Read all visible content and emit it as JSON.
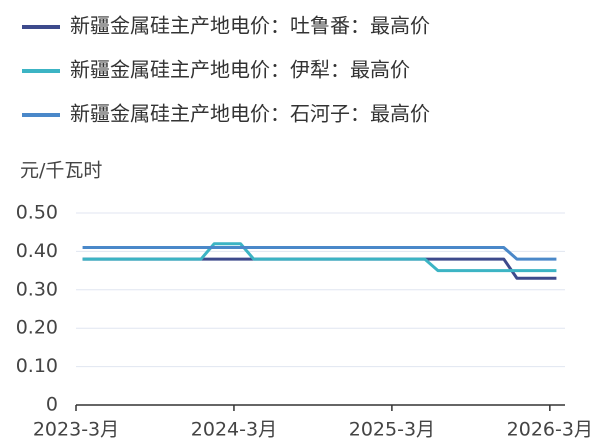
{
  "chart_data": {
    "type": "line",
    "y_label": "元/千瓦时",
    "categories": [
      "2023-3月",
      null,
      null,
      null,
      null,
      null,
      null,
      null,
      null,
      null,
      null,
      null,
      "2024-3月",
      null,
      null,
      null,
      null,
      null,
      null,
      null,
      null,
      null,
      null,
      null,
      "2025-3月",
      null,
      null,
      null,
      null,
      null,
      null,
      null,
      null,
      null,
      null,
      null,
      "2026-3月"
    ],
    "series": [
      {
        "name": "新疆金属硅主产地电价：吐鲁番：最高价",
        "color": "#3d4a8c",
        "values": [
          0.38,
          0.38,
          0.38,
          0.38,
          0.38,
          0.38,
          0.38,
          0.38,
          0.38,
          0.38,
          0.38,
          0.38,
          0.38,
          0.38,
          0.38,
          0.38,
          0.38,
          0.38,
          0.38,
          0.38,
          0.38,
          0.38,
          0.38,
          0.38,
          0.38,
          0.38,
          0.38,
          0.38,
          0.38,
          0.38,
          0.38,
          0.38,
          0.38,
          0.33,
          0.33,
          0.33,
          0.33
        ]
      },
      {
        "name": "新疆金属硅主产地电价：伊犁：最高价",
        "color": "#3cb4c4",
        "values": [
          0.38,
          0.38,
          0.38,
          0.38,
          0.38,
          0.38,
          0.38,
          0.38,
          0.38,
          0.38,
          0.42,
          0.42,
          0.42,
          0.38,
          0.38,
          0.38,
          0.38,
          0.38,
          0.38,
          0.38,
          0.38,
          0.38,
          0.38,
          0.38,
          0.38,
          0.38,
          0.38,
          0.35,
          0.35,
          0.35,
          0.35,
          0.35,
          0.35,
          0.35,
          0.35,
          0.35,
          0.35
        ]
      },
      {
        "name": "新疆金属硅主产地电价：石河子：最高价",
        "color": "#4a88c9",
        "values": [
          0.41,
          0.41,
          0.41,
          0.41,
          0.41,
          0.41,
          0.41,
          0.41,
          0.41,
          0.41,
          0.41,
          0.41,
          0.41,
          0.41,
          0.41,
          0.41,
          0.41,
          0.41,
          0.41,
          0.41,
          0.41,
          0.41,
          0.41,
          0.41,
          0.41,
          0.41,
          0.41,
          0.41,
          0.41,
          0.41,
          0.41,
          0.41,
          0.41,
          0.38,
          0.38,
          0.38,
          0.38
        ]
      }
    ],
    "ylim": [
      0,
      0.5
    ],
    "yticks": [
      0,
      {
        "value": 0.1,
        "label": "0.10"
      },
      {
        "value": 0.2,
        "label": "0.20"
      },
      {
        "value": 0.3,
        "label": "0.30"
      },
      {
        "value": 0.4,
        "label": "0.40"
      },
      {
        "value": 0.5,
        "label": "0.50"
      }
    ],
    "grid": true
  }
}
